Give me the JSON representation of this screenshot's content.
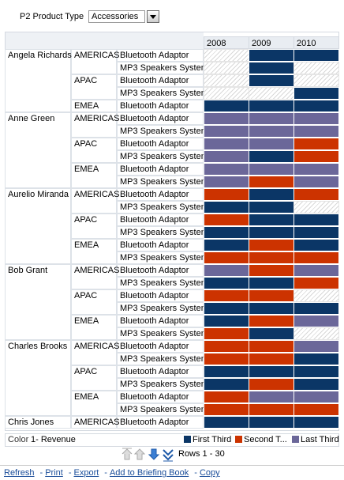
{
  "prompt": {
    "label": "P2 Product Type",
    "value": "Accessories"
  },
  "columns": [
    "2008",
    "2009",
    "2010"
  ],
  "colors": [
    "#0b3666",
    "#cc3300",
    "#6b6799"
  ],
  "persons": [
    {
      "name": "Angela Richards",
      "regions": [
        {
          "name": "AMERICAS",
          "products": [
            {
              "name": "Bluetooth Adaptor",
              "cells": [
                null,
                0,
                0
              ]
            },
            {
              "name": "MP3 Speakers System",
              "cells": [
                null,
                0,
                null
              ]
            }
          ]
        },
        {
          "name": "APAC",
          "products": [
            {
              "name": "Bluetooth Adaptor",
              "cells": [
                null,
                0,
                null
              ]
            },
            {
              "name": "MP3 Speakers System",
              "cells": [
                null,
                null,
                0
              ]
            }
          ]
        },
        {
          "name": "EMEA",
          "products": [
            {
              "name": "Bluetooth Adaptor",
              "cells": [
                0,
                0,
                0
              ]
            }
          ]
        }
      ]
    },
    {
      "name": "Anne Green",
      "regions": [
        {
          "name": "AMERICAS",
          "products": [
            {
              "name": "Bluetooth Adaptor",
              "cells": [
                2,
                2,
                2
              ]
            },
            {
              "name": "MP3 Speakers System",
              "cells": [
                2,
                2,
                2
              ]
            }
          ]
        },
        {
          "name": "APAC",
          "products": [
            {
              "name": "Bluetooth Adaptor",
              "cells": [
                2,
                2,
                1
              ]
            },
            {
              "name": "MP3 Speakers System",
              "cells": [
                2,
                0,
                1
              ]
            }
          ]
        },
        {
          "name": "EMEA",
          "products": [
            {
              "name": "Bluetooth Adaptor",
              "cells": [
                2,
                2,
                2
              ]
            },
            {
              "name": "MP3 Speakers System",
              "cells": [
                2,
                1,
                2
              ]
            }
          ]
        }
      ]
    },
    {
      "name": "Aurelio Miranda",
      "regions": [
        {
          "name": "AMERICAS",
          "products": [
            {
              "name": "Bluetooth Adaptor",
              "cells": [
                1,
                0,
                1
              ]
            },
            {
              "name": "MP3 Speakers System",
              "cells": [
                0,
                0,
                null
              ]
            }
          ]
        },
        {
          "name": "APAC",
          "products": [
            {
              "name": "Bluetooth Adaptor",
              "cells": [
                1,
                0,
                0
              ]
            },
            {
              "name": "MP3 Speakers System",
              "cells": [
                0,
                0,
                0
              ]
            }
          ]
        },
        {
          "name": "EMEA",
          "products": [
            {
              "name": "Bluetooth Adaptor",
              "cells": [
                0,
                1,
                0
              ]
            },
            {
              "name": "MP3 Speakers System",
              "cells": [
                1,
                1,
                1
              ]
            }
          ]
        }
      ]
    },
    {
      "name": "Bob Grant",
      "regions": [
        {
          "name": "AMERICAS",
          "products": [
            {
              "name": "Bluetooth Adaptor",
              "cells": [
                2,
                1,
                2
              ]
            },
            {
              "name": "MP3 Speakers System",
              "cells": [
                0,
                0,
                1
              ]
            }
          ]
        },
        {
          "name": "APAC",
          "products": [
            {
              "name": "Bluetooth Adaptor",
              "cells": [
                1,
                1,
                null
              ]
            },
            {
              "name": "MP3 Speakers System",
              "cells": [
                0,
                0,
                0
              ]
            }
          ]
        },
        {
          "name": "EMEA",
          "products": [
            {
              "name": "Bluetooth Adaptor",
              "cells": [
                0,
                1,
                2
              ]
            },
            {
              "name": "MP3 Speakers System",
              "cells": [
                1,
                0,
                null
              ]
            }
          ]
        }
      ]
    },
    {
      "name": "Charles Brooks",
      "regions": [
        {
          "name": "AMERICAS",
          "products": [
            {
              "name": "Bluetooth Adaptor",
              "cells": [
                1,
                1,
                2
              ]
            },
            {
              "name": "MP3 Speakers System",
              "cells": [
                1,
                1,
                0
              ]
            }
          ]
        },
        {
          "name": "APAC",
          "products": [
            {
              "name": "Bluetooth Adaptor",
              "cells": [
                0,
                0,
                0
              ]
            },
            {
              "name": "MP3 Speakers System",
              "cells": [
                0,
                1,
                0
              ]
            }
          ]
        },
        {
          "name": "EMEA",
          "products": [
            {
              "name": "Bluetooth Adaptor",
              "cells": [
                1,
                2,
                2
              ]
            },
            {
              "name": "MP3 Speakers System",
              "cells": [
                1,
                1,
                1
              ]
            }
          ]
        }
      ]
    },
    {
      "name": "Chris Jones",
      "regions": [
        {
          "name": "AMERICAS",
          "products": [
            {
              "name": "Bluetooth Adaptor",
              "cells": [
                0,
                0,
                0
              ]
            }
          ]
        }
      ]
    }
  ],
  "legend": {
    "label": "Color",
    "measure": "1- Revenue",
    "items": [
      "First Third",
      "Second T...",
      "Last Third"
    ]
  },
  "paging": "Rows 1 - 30",
  "links": {
    "separator": "-",
    "items": [
      "Refresh",
      "Print",
      "Export",
      "Add to Briefing Book",
      "Copy"
    ]
  }
}
